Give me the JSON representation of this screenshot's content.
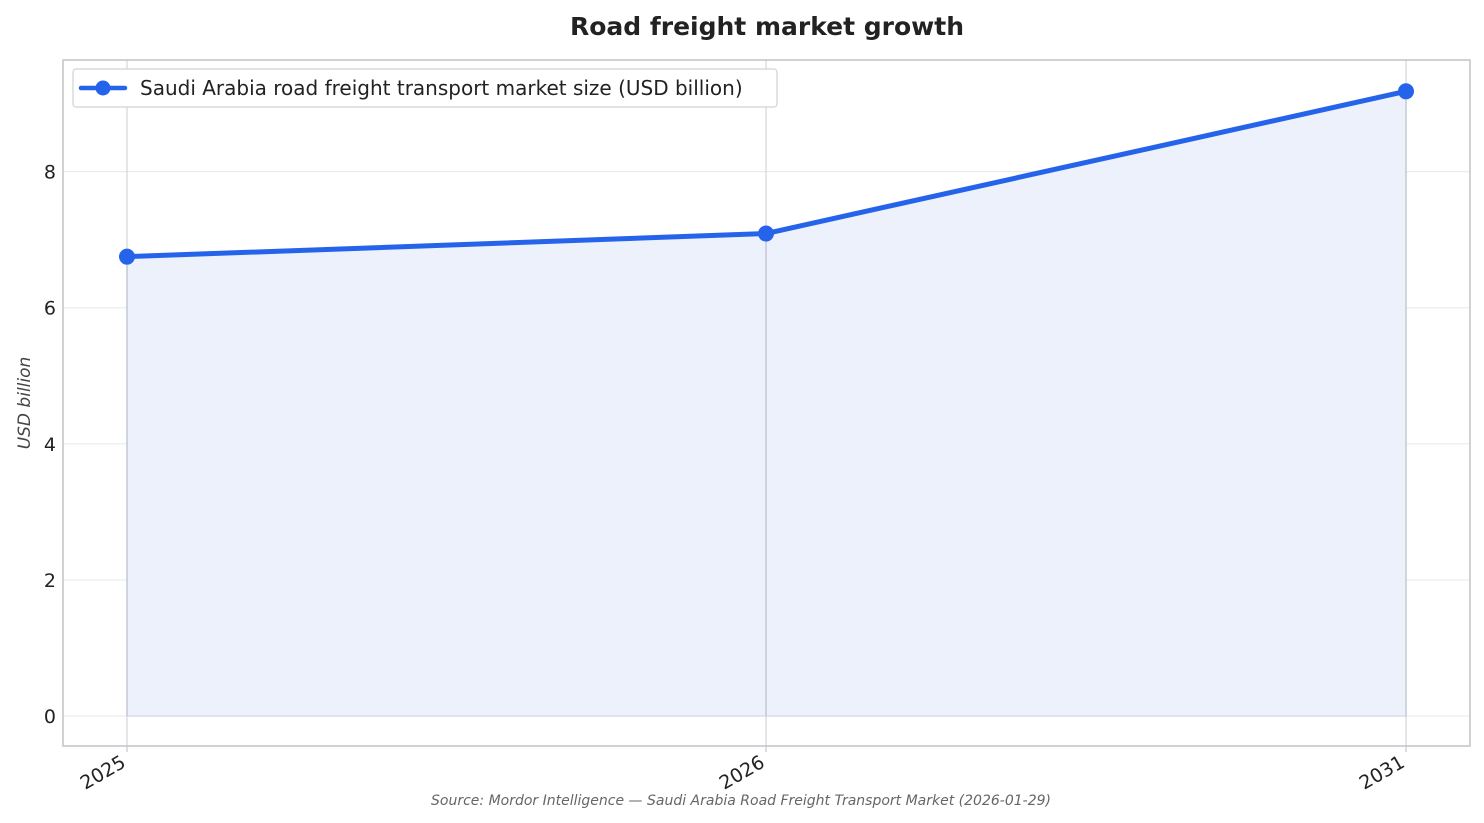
{
  "chart_data": {
    "type": "line",
    "title": "Road freight market growth",
    "xlabel": "",
    "ylabel": "USD billion",
    "categories": [
      "2025",
      "2026",
      "2031"
    ],
    "series": [
      {
        "name": "Saudi Arabia road freight transport market size (USD billion)",
        "values": [
          6.75,
          7.09,
          9.18
        ],
        "color": "#2563eb"
      }
    ],
    "ylim": [
      -0.44,
      9.64
    ],
    "yticks": [
      0,
      2,
      4,
      6,
      8
    ],
    "grid": true,
    "legend": "top-left",
    "area_fill": true,
    "source": "Source: Mordor Intelligence — Saudi Arabia Road Freight Transport Market (2026-01-29)"
  },
  "colors": {
    "series": "#2563eb",
    "fill": "#ecf1fc",
    "grid": "#e9ebef",
    "axes": "#c4c7cc"
  }
}
